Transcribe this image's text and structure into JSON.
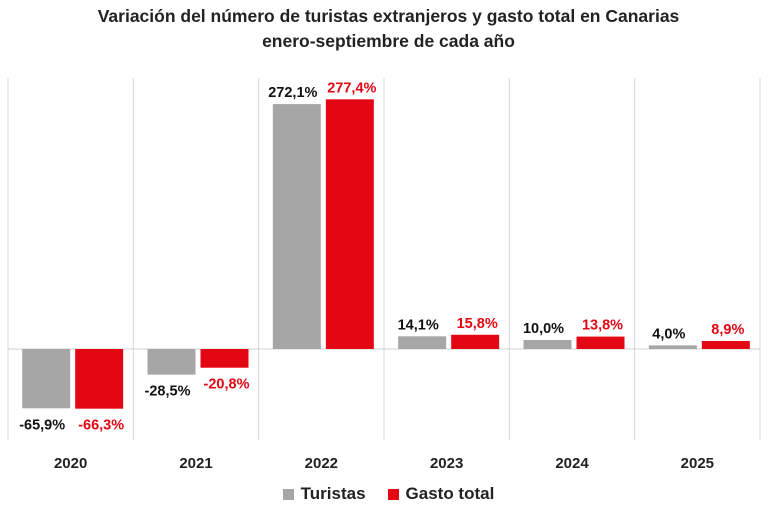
{
  "colors": {
    "turistas": "#a6a6a6",
    "gasto": "#e30613",
    "label_turistas": "#111111",
    "label_gasto": "#e30613",
    "grid": "#d9d9d9"
  },
  "chart_data": {
    "type": "bar",
    "title": "Variación del número de turistas extranjeros y gasto total en Canarias",
    "subtitle": "enero-septiembre de cada año",
    "categories": [
      "2020",
      "2021",
      "2022",
      "2023",
      "2024",
      "2025"
    ],
    "series": [
      {
        "name": "Turistas",
        "values": [
          -65.9,
          -28.5,
          272.1,
          14.1,
          10.0,
          4.0
        ],
        "labels": [
          "-65,9%",
          "-28,5%",
          "272,1%",
          "14,1%",
          "10,0%",
          "4,0%"
        ]
      },
      {
        "name": "Gasto total",
        "values": [
          -66.3,
          -20.8,
          277.4,
          15.8,
          13.8,
          8.9
        ],
        "labels": [
          "-66,3%",
          "-20,8%",
          "277,4%",
          "15,8%",
          "13,8%",
          "8,9%"
        ]
      }
    ],
    "ylim": [
      -100,
      300
    ],
    "grid": "vertical category separators",
    "legend": "bottom-center",
    "xlabel": "",
    "ylabel": ""
  }
}
